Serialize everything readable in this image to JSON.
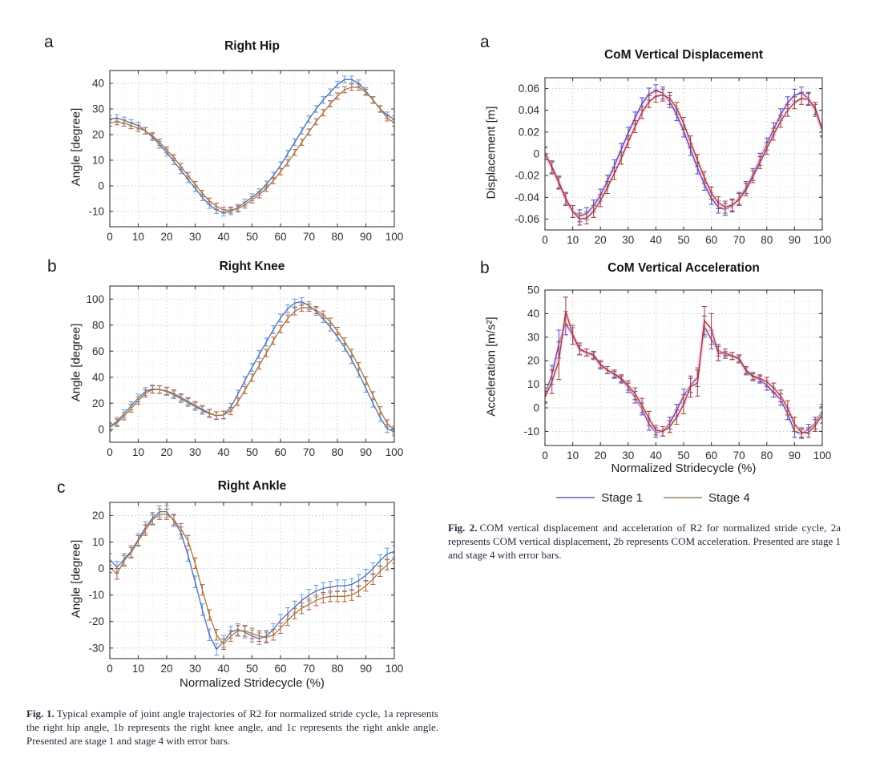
{
  "page": {
    "background": "#ffffff"
  },
  "colors": {
    "axis": "#3a3a3a",
    "tick_label": "#2e2e2e",
    "grid_major": "#c6c6c6",
    "grid_minor": "#dcdcdc",
    "halo": "#ffc8dc",
    "stage1_left_line": "#4a6db8",
    "stage1_left_err": "#6fa3d8",
    "stage4_left_line": "#9c7b3f",
    "stage4_left_err": "#c2674b",
    "stage1_right_line": "#4545c8",
    "stage1_right_err": "#5c55cc",
    "stage4_right_line": "#963a3c",
    "stage4_right_err": "#a64a42"
  },
  "figure1": {
    "caption_label": "Fig. 1.",
    "caption_text": "Typical example of joint angle trajectories of R2 for normalized stride cycle, 1a represents the right hip angle, 1b represents the right knee angle, and 1c represents the right ankle angle. Presented are stage 1 and stage 4 with error bars."
  },
  "figure2": {
    "caption_label": "Fig. 2.",
    "caption_text": "COM vertical displacement and acceleration of R2 for normalized stride cycle, 2a represents COM vertical displacement, 2b represents COM acceleration. Presented are stage 1 and stage 4 with error bars.",
    "legend": {
      "items": [
        {
          "label": "Stage 1",
          "color": "#8488c6"
        },
        {
          "label": "Stage 4",
          "color": "#b0a08b"
        }
      ]
    }
  },
  "chart_data": [
    {
      "type": "line",
      "panel": "a",
      "title": "Right Hip",
      "ylabel": "Angle [degree]",
      "xlabel": null,
      "x_start": 0,
      "x_step": 2.5,
      "xlim": [
        0,
        100
      ],
      "xticks": [
        0,
        10,
        20,
        30,
        40,
        50,
        60,
        70,
        80,
        90,
        100
      ],
      "ylim": [
        -16,
        45
      ],
      "yticks": [
        -10,
        0,
        10,
        20,
        30,
        40
      ],
      "grid": true,
      "halo": false,
      "series": [
        {
          "name": "Stage 1",
          "color": "#4a6db8",
          "err_color": "#6fa3d8",
          "err": 1.3,
          "values": [
            26,
            26.5,
            25.5,
            24.5,
            23.5,
            21.5,
            19,
            16,
            13,
            9.5,
            6,
            2.5,
            -1,
            -4.5,
            -7.5,
            -9.5,
            -10.5,
            -10,
            -8.5,
            -6.5,
            -4.5,
            -2.5,
            0.5,
            4,
            8,
            12.5,
            17,
            21.5,
            26,
            30,
            33.5,
            36.5,
            39.5,
            41.5,
            41.5,
            40,
            37,
            33.5,
            30,
            27.5,
            26
          ]
        },
        {
          "name": "Stage 4",
          "color": "#9c7b3f",
          "err_color": "#c2674b",
          "err": 1.2,
          "values": [
            24.5,
            25,
            24.5,
            23.5,
            22.5,
            21.5,
            19.5,
            17,
            14,
            11,
            7.5,
            4,
            0.5,
            -3,
            -6,
            -8,
            -9.5,
            -9.5,
            -9,
            -7.5,
            -5.5,
            -3.5,
            -1,
            2,
            5.5,
            9,
            13,
            17,
            21,
            25,
            28.5,
            32,
            35,
            37.5,
            38.5,
            38.5,
            36.5,
            33.5,
            30,
            26.5,
            24.5
          ]
        }
      ]
    },
    {
      "type": "line",
      "panel": "b",
      "title": "Right Knee",
      "ylabel": "Angle [degree]",
      "xlabel": null,
      "x_start": 0,
      "x_step": 2.5,
      "xlim": [
        0,
        100
      ],
      "xticks": [
        0,
        10,
        20,
        30,
        40,
        50,
        60,
        70,
        80,
        90,
        100
      ],
      "ylim": [
        -10,
        110
      ],
      "yticks": [
        0,
        20,
        40,
        60,
        80,
        100
      ],
      "grid": true,
      "halo": false,
      "series": [
        {
          "name": "Stage 1",
          "color": "#4a6db8",
          "err_color": "#6fa3d8",
          "err": 3,
          "values": [
            2,
            6,
            12,
            18,
            24,
            29,
            31,
            30.5,
            29,
            26.5,
            23.5,
            20.5,
            17.5,
            14.5,
            12,
            10.5,
            11,
            17,
            27,
            37.5,
            47.5,
            57.5,
            67,
            76.5,
            85.5,
            92.5,
            97,
            98,
            95,
            90.5,
            85,
            78.5,
            71,
            63,
            53.5,
            43,
            31.5,
            20,
            9,
            0.5,
            -2
          ]
        },
        {
          "name": "Stage 4",
          "color": "#9c7b3f",
          "err_color": "#c2674b",
          "err": 2.8,
          "values": [
            1.5,
            5,
            10,
            16,
            22,
            27.5,
            30.5,
            30.5,
            29.5,
            27.5,
            24.5,
            21.5,
            18.5,
            15.5,
            12.5,
            10.5,
            11,
            14,
            21,
            30,
            39.5,
            49,
            58.5,
            68,
            77,
            85,
            90.5,
            93.5,
            93.5,
            91.5,
            88,
            82.5,
            75.5,
            67.5,
            58.5,
            48.5,
            37.5,
            26,
            14.5,
            4.5,
            -0.5
          ]
        }
      ]
    },
    {
      "type": "line",
      "panel": "c",
      "title": "Right Ankle",
      "ylabel": "Angle [degree]",
      "xlabel": "Normalized Stridecycle (%)",
      "x_start": 0,
      "x_step": 2.5,
      "xlim": [
        0,
        100
      ],
      "xticks": [
        0,
        10,
        20,
        30,
        40,
        50,
        60,
        70,
        80,
        90,
        100
      ],
      "ylim": [
        -34,
        25
      ],
      "yticks": [
        -30,
        -20,
        -10,
        0,
        10,
        20
      ],
      "grid": true,
      "halo": false,
      "series": [
        {
          "name": "Stage 1",
          "color": "#4a6db8",
          "err_color": "#6fa3d8",
          "err": 2.2,
          "values": [
            3.5,
            0.5,
            3.5,
            6.5,
            11,
            15.5,
            19,
            21.5,
            21.5,
            18,
            13.5,
            5,
            -5,
            -15.5,
            -25,
            -30.5,
            -27.5,
            -24,
            -23,
            -24,
            -25.5,
            -26.5,
            -25.5,
            -23,
            -19.5,
            -17,
            -14.5,
            -12,
            -10,
            -8.5,
            -7.5,
            -7,
            -6.5,
            -6.5,
            -6,
            -4.5,
            -2.5,
            0,
            3,
            5.5,
            6.5
          ]
        },
        {
          "name": "Stage 4",
          "color": "#9c7b3f",
          "err_color": "#c2674b",
          "err": 2,
          "values": [
            0.5,
            -2,
            3,
            6,
            10.5,
            14.5,
            18.5,
            20.5,
            20.5,
            18.5,
            15,
            10.5,
            2,
            -8,
            -17.5,
            -25,
            -28.5,
            -25.5,
            -23.5,
            -23.5,
            -24.5,
            -25.5,
            -26,
            -25,
            -22.5,
            -19.5,
            -17,
            -15,
            -13.5,
            -12,
            -11,
            -10.5,
            -10.5,
            -10.5,
            -10,
            -8.5,
            -6.5,
            -4,
            -1,
            1.5,
            4
          ]
        }
      ]
    },
    {
      "type": "line",
      "panel": "a",
      "title": "CoM Vertical Displacement",
      "ylabel": "Displacement [m]",
      "xlabel": null,
      "x_start": 0,
      "x_step": 2.5,
      "xlim": [
        0,
        100
      ],
      "xticks": [
        0,
        10,
        20,
        30,
        40,
        50,
        60,
        70,
        80,
        90,
        100
      ],
      "ylim": [
        -0.07,
        0.07
      ],
      "yticks": [
        -0.06,
        -0.04,
        -0.02,
        0,
        0.02,
        0.04,
        0.06
      ],
      "grid": true,
      "halo": true,
      "series": [
        {
          "name": "Stage 1",
          "color": "#4545c8",
          "err_color": "#5c55cc",
          "err": 0.0055,
          "values": [
            0.001,
            -0.013,
            -0.027,
            -0.042,
            -0.053,
            -0.057,
            -0.055,
            -0.048,
            -0.038,
            -0.025,
            -0.011,
            0.004,
            0.019,
            0.033,
            0.046,
            0.055,
            0.058,
            0.056,
            0.048,
            0.036,
            0.021,
            0.004,
            -0.013,
            -0.028,
            -0.041,
            -0.049,
            -0.051,
            -0.048,
            -0.041,
            -0.031,
            -0.019,
            -0.005,
            0.009,
            0.023,
            0.036,
            0.047,
            0.054,
            0.056,
            0.051,
            0.04,
            0.021
          ]
        },
        {
          "name": "Stage 4",
          "color": "#963a3c",
          "err_color": "#a64a42",
          "err": 0.0055,
          "values": [
            0,
            -0.012,
            -0.026,
            -0.041,
            -0.053,
            -0.06,
            -0.059,
            -0.053,
            -0.043,
            -0.031,
            -0.018,
            -0.004,
            0.011,
            0.025,
            0.038,
            0.048,
            0.053,
            0.054,
            0.051,
            0.042,
            0.028,
            0.011,
            -0.006,
            -0.022,
            -0.036,
            -0.045,
            -0.049,
            -0.047,
            -0.042,
            -0.033,
            -0.021,
            -0.008,
            0.005,
            0.018,
            0.03,
            0.04,
            0.047,
            0.051,
            0.05,
            0.042,
            0.022
          ]
        }
      ]
    },
    {
      "type": "line",
      "panel": "b",
      "title": "CoM Vertical Acceleration",
      "ylabel": "Acceleration [m/s²]",
      "xlabel": "Normalized Stridecycle (%)",
      "x_start": 0,
      "x_step": 2.5,
      "xlim": [
        0,
        100
      ],
      "xticks": [
        0,
        10,
        20,
        30,
        40,
        50,
        60,
        70,
        80,
        90,
        100
      ],
      "ylim": [
        -16,
        50
      ],
      "yticks": [
        -10,
        0,
        10,
        20,
        30,
        40,
        50
      ],
      "grid": true,
      "halo": true,
      "series": [
        {
          "name": "Stage 1",
          "color": "#4545c8",
          "err_color": "#5c55cc",
          "err": [
            3,
            4,
            6,
            5,
            3.5,
            2,
            1.5,
            1.5,
            1.5,
            1.5,
            1.5,
            1.5,
            2,
            2.5,
            2.5,
            2.5,
            2,
            2,
            2.5,
            2.5,
            3,
            3,
            4,
            4.5,
            4,
            2.5,
            1.5,
            1.5,
            1.5,
            1.5,
            1.5,
            1.5,
            2,
            2,
            2.5,
            2.5,
            2.5,
            2,
            2,
            2.5,
            3
          ],
          "values": [
            5.5,
            14,
            27,
            36,
            30.5,
            24.5,
            23.5,
            22,
            18,
            16,
            14,
            12,
            8.5,
            4.5,
            -0.5,
            -7,
            -10.5,
            -10,
            -6.5,
            -1,
            5,
            9.5,
            13,
            34.5,
            29,
            24.5,
            22.5,
            22,
            20.5,
            15.5,
            13,
            12,
            9.5,
            6.5,
            3.5,
            -2.5,
            -10,
            -11,
            -9,
            -6.5,
            -1.5
          ]
        },
        {
          "name": "Stage 4",
          "color": "#963a3c",
          "err_color": "#a64a42",
          "err": [
            2.5,
            5,
            8,
            6,
            4,
            2.5,
            1.5,
            1.5,
            1.5,
            1.5,
            1.5,
            1.5,
            2,
            2.5,
            3,
            3,
            2,
            2,
            2.5,
            3,
            4,
            4.5,
            5.5,
            6,
            6.5,
            3,
            1.5,
            1.5,
            1.5,
            1.5,
            1.5,
            1.5,
            2,
            2,
            2.5,
            3,
            3,
            2,
            2,
            2.5,
            3.5
          ],
          "values": [
            4.5,
            11,
            20,
            41,
            31,
            25,
            23.5,
            22.5,
            18.5,
            16,
            14.5,
            12.5,
            9.5,
            6,
            1,
            -4.5,
            -9.5,
            -10,
            -8,
            -4,
            1.5,
            9,
            10.5,
            37,
            33.5,
            23,
            23.5,
            22,
            21,
            16,
            13.5,
            12.5,
            11,
            8.5,
            5,
            0,
            -7,
            -10.5,
            -10.5,
            -7.5,
            -3
          ]
        }
      ]
    }
  ]
}
